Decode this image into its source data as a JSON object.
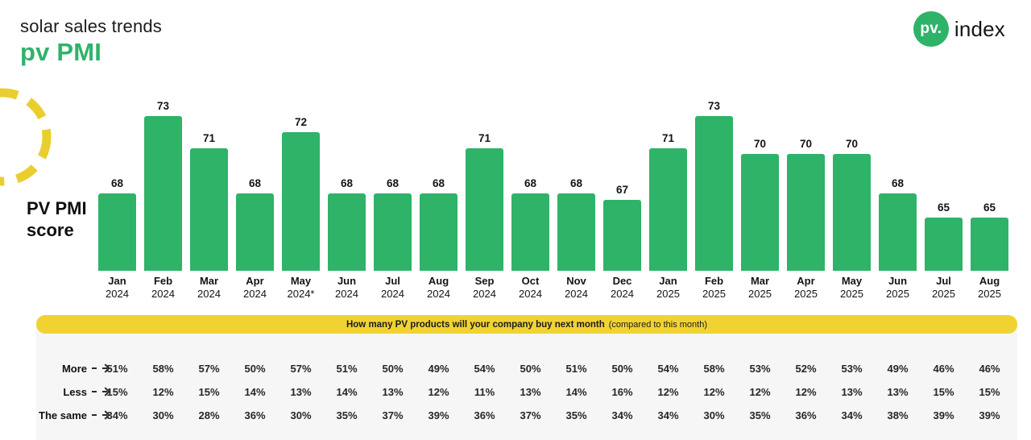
{
  "header": {
    "subtitle": "solar sales trends",
    "title": "pv PMI",
    "logo": {
      "circle_text": "pv.",
      "text": "index"
    }
  },
  "chart": {
    "axis_label_line1": "PV PMI",
    "axis_label_line2": "score"
  },
  "chart_data": {
    "type": "bar",
    "title": "pv PMI",
    "ylabel": "PV PMI score",
    "xlabel": "",
    "legend": [],
    "grid": false,
    "bar_color": "#2eb369",
    "categories": [
      "Jan 2024",
      "Feb 2024",
      "Mar 2024",
      "Apr 2024",
      "May 2024*",
      "Jun 2024",
      "Jul 2024",
      "Aug 2024",
      "Sep 2024",
      "Oct 2024",
      "Nov 2024",
      "Dec 2024",
      "Jan 2025",
      "Feb 2025",
      "Mar 2025",
      "Apr 2025",
      "May 2025",
      "Jun 2025",
      "Jul 2025",
      "Aug 2025"
    ],
    "values": [
      68,
      73,
      71,
      68,
      72,
      68,
      68,
      68,
      71,
      68,
      68,
      67,
      71,
      73,
      70,
      70,
      70,
      68,
      65,
      65
    ],
    "ylim": [
      60,
      75
    ]
  },
  "table": {
    "banner_bold": "How many PV products will your company buy next month",
    "banner_note": "(compared to this month)",
    "rows": [
      {
        "label": "More",
        "values": [
          "51%",
          "58%",
          "57%",
          "50%",
          "57%",
          "51%",
          "50%",
          "49%",
          "54%",
          "50%",
          "51%",
          "50%",
          "54%",
          "58%",
          "53%",
          "52%",
          "53%",
          "49%",
          "46%",
          "46%"
        ]
      },
      {
        "label": "Less",
        "values": [
          "15%",
          "12%",
          "15%",
          "14%",
          "13%",
          "14%",
          "13%",
          "12%",
          "11%",
          "13%",
          "14%",
          "16%",
          "12%",
          "12%",
          "12%",
          "12%",
          "13%",
          "13%",
          "15%",
          "15%"
        ]
      },
      {
        "label": "The same",
        "values": [
          "34%",
          "30%",
          "28%",
          "36%",
          "30%",
          "35%",
          "37%",
          "39%",
          "36%",
          "37%",
          "35%",
          "34%",
          "34%",
          "30%",
          "35%",
          "36%",
          "34%",
          "38%",
          "39%",
          "39%"
        ]
      }
    ]
  },
  "colors": {
    "green": "#2eb369",
    "yellow": "#f0d333",
    "card_bg": "#f6f6f6"
  }
}
